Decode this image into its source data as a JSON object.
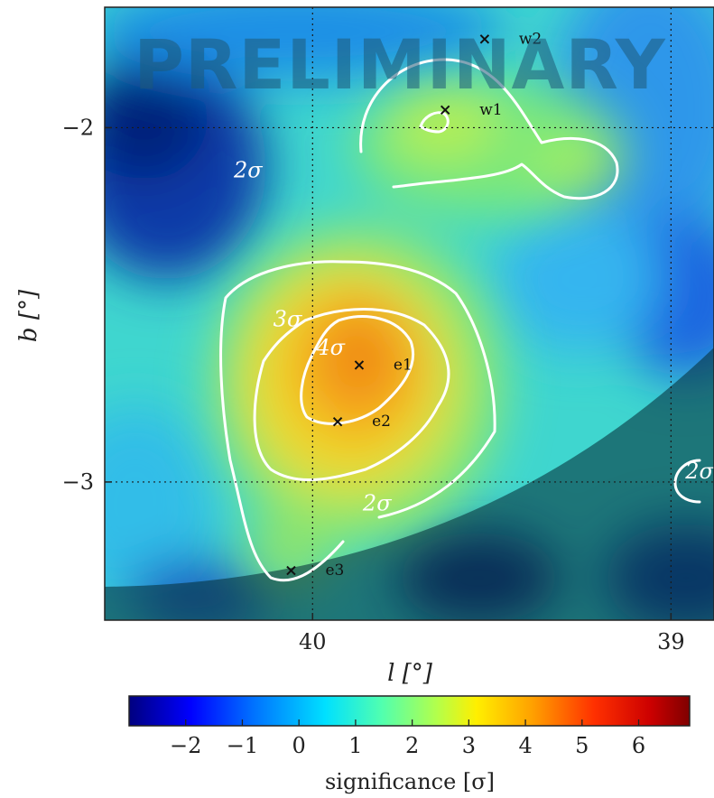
{
  "watermark": "PRELIMINARY",
  "chart_data": {
    "type": "heatmap",
    "xlabel": "l [°]",
    "ylabel": "b [°]",
    "xlim": [
      40.58,
      38.88
    ],
    "ylim": [
      -3.39,
      -1.66
    ],
    "x_ticks": [
      {
        "value": 40,
        "label": "40"
      },
      {
        "value": 39,
        "label": "39"
      }
    ],
    "y_ticks": [
      {
        "value": -2,
        "label": "−2"
      },
      {
        "value": -3,
        "label": "−3"
      }
    ],
    "grid": "dotted",
    "colormap": "jet",
    "colorbar": {
      "label": "significance [σ]",
      "range": [
        -3,
        6.9
      ],
      "ticks": [
        {
          "value": -2,
          "label": "−2"
        },
        {
          "value": -1,
          "label": "−1"
        },
        {
          "value": 0,
          "label": "0"
        },
        {
          "value": 1,
          "label": "1"
        },
        {
          "value": 2,
          "label": "2"
        },
        {
          "value": 3,
          "label": "3"
        },
        {
          "value": 4,
          "label": "4"
        },
        {
          "value": 5,
          "label": "5"
        },
        {
          "value": 6,
          "label": "6"
        }
      ]
    },
    "sources": [
      {
        "name": "w2",
        "l": 39.52,
        "b": -1.75
      },
      {
        "name": "w1",
        "l": 39.63,
        "b": -1.95
      },
      {
        "name": "e1",
        "l": 39.87,
        "b": -2.67
      },
      {
        "name": "e2",
        "l": 39.93,
        "b": -2.83
      },
      {
        "name": "e3",
        "l": 40.06,
        "b": -3.25
      }
    ],
    "contour_labels": [
      {
        "label": "2σ",
        "l": 40.18,
        "b": -2.12
      },
      {
        "label": "3σ",
        "l": 40.07,
        "b": -2.54
      },
      {
        "label": "4σ",
        "l": 39.95,
        "b": -2.62
      },
      {
        "label": "2σ",
        "l": 39.82,
        "b": -3.06
      },
      {
        "label": "2σ",
        "l": 38.92,
        "b": -2.97
      }
    ],
    "shaded_region": "below exposure boundary (masked)"
  }
}
